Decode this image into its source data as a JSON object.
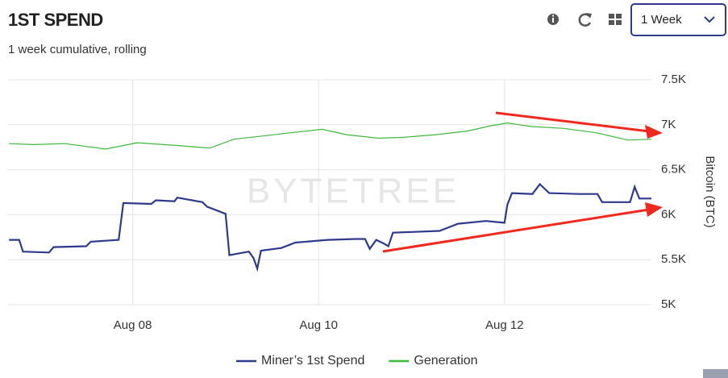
{
  "controls": {
    "range": "1 Week"
  },
  "chart_data": {
    "type": "line",
    "title": "1ST SPEND",
    "subtitle": "1 week cumulative, rolling",
    "watermark": "BYTETREE",
    "y_label": "Bitcoin (BTC)",
    "grid": true,
    "legend": "bottom",
    "xlim": [
      6.66,
      13.58
    ],
    "xticks": [
      {
        "value": 8,
        "label": "Aug 08"
      },
      {
        "value": 10,
        "label": "Aug 10"
      },
      {
        "value": 12,
        "label": "Aug 12"
      }
    ],
    "ylim": [
      5000,
      7500
    ],
    "yticks": [
      {
        "value": 5000,
        "label": "5K"
      },
      {
        "value": 5500,
        "label": "5.5K"
      },
      {
        "value": 6000,
        "label": "6K"
      },
      {
        "value": 6500,
        "label": "6.5K"
      },
      {
        "value": 7000,
        "label": "7K"
      },
      {
        "value": 7500,
        "label": "7.5K"
      }
    ],
    "series": [
      {
        "name": "Miner’s 1st Spend",
        "color": "#2e3a8c",
        "x": [
          6.67,
          6.78,
          6.82,
          7.1,
          7.15,
          7.5,
          7.55,
          7.85,
          7.9,
          8.2,
          8.25,
          8.45,
          8.48,
          8.75,
          8.8,
          9.0,
          9.04,
          9.25,
          9.3,
          9.34,
          9.38,
          9.6,
          9.75,
          10.1,
          10.4,
          10.5,
          10.55,
          10.62,
          10.7,
          10.75,
          10.8,
          11.3,
          11.5,
          11.8,
          12.0,
          12.03,
          12.08,
          12.3,
          12.38,
          12.48,
          12.8,
          13.0,
          13.05,
          13.35,
          13.4,
          13.45,
          13.58
        ],
        "values": [
          5720,
          5720,
          5590,
          5580,
          5640,
          5650,
          5700,
          5720,
          6130,
          6120,
          6160,
          6150,
          6190,
          6140,
          6090,
          6010,
          5550,
          5590,
          5520,
          5400,
          5600,
          5630,
          5690,
          5720,
          5730,
          5730,
          5620,
          5720,
          5680,
          5650,
          5800,
          5820,
          5900,
          5930,
          5910,
          6110,
          6240,
          6230,
          6340,
          6240,
          6230,
          6230,
          6140,
          6140,
          6310,
          6180,
          6180
        ]
      },
      {
        "name": "Generation",
        "color": "#3cb83c",
        "x": [
          6.67,
          6.93,
          7.27,
          7.71,
          8.05,
          8.48,
          8.83,
          9.09,
          9.44,
          9.78,
          10.04,
          10.3,
          10.65,
          10.91,
          11.26,
          11.6,
          11.86,
          12.03,
          12.29,
          12.64,
          12.99,
          13.33,
          13.58
        ],
        "values": [
          6790,
          6780,
          6790,
          6730,
          6800,
          6770,
          6740,
          6840,
          6880,
          6920,
          6950,
          6890,
          6850,
          6860,
          6890,
          6930,
          6990,
          7020,
          6980,
          6960,
          6910,
          6830,
          6840
        ]
      }
    ]
  }
}
